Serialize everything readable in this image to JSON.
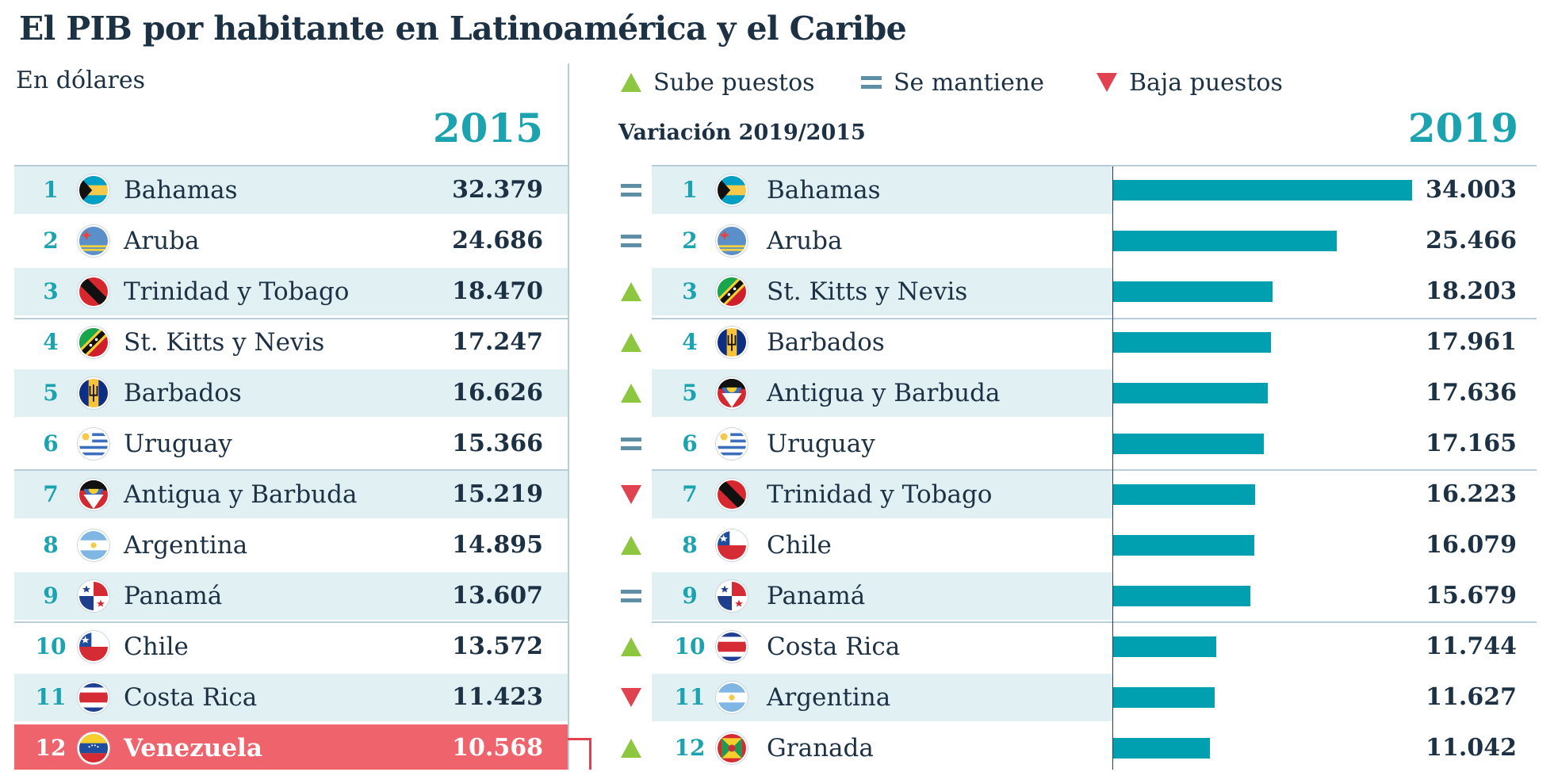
{
  "title": "El PIB por habitante en Latinoamérica y el Caribe",
  "subtitle": "En dólares",
  "colors": {
    "accent": "#1ca3b0",
    "bar": "#00a0b0",
    "up": "#8dc63f",
    "same": "#5f8fa6",
    "down": "#e0434f",
    "highlight": "#ef646c",
    "row_shade": "#e1f0f3",
    "text": "#1c3144"
  },
  "legend": [
    {
      "symbol": "up",
      "label": "Sube puestos"
    },
    {
      "symbol": "same",
      "label": "Se mantiene"
    },
    {
      "symbol": "down",
      "label": "Baja puestos"
    }
  ],
  "left": {
    "year": "2015",
    "rows": [
      {
        "rank": "1",
        "country": "Bahamas",
        "value": "32.379",
        "flag": "bahamas-flag-icon"
      },
      {
        "rank": "2",
        "country": "Aruba",
        "value": "24.686",
        "flag": "aruba-flag-icon"
      },
      {
        "rank": "3",
        "country": "Trinidad y  Tobago",
        "value": "18.470",
        "flag": "trinidad-and-tobago-flag-icon"
      },
      {
        "rank": "4",
        "country": "St. Kitts y Nevis",
        "value": "17.247",
        "flag": "st-kitts-and-nevis-flag-icon"
      },
      {
        "rank": "5",
        "country": "Barbados",
        "value": "16.626",
        "flag": "barbados-flag-icon"
      },
      {
        "rank": "6",
        "country": "Uruguay",
        "value": "15.366",
        "flag": "uruguay-flag-icon"
      },
      {
        "rank": "7",
        "country": "Antigua y Barbuda",
        "value": "15.219",
        "flag": "antigua-and-barbuda-flag-icon"
      },
      {
        "rank": "8",
        "country": "Argentina",
        "value": "14.895",
        "flag": "argentina-flag-icon"
      },
      {
        "rank": "9",
        "country": "Panamá",
        "value": "13.607",
        "flag": "panama-flag-icon"
      },
      {
        "rank": "10",
        "country": "Chile",
        "value": "13.572",
        "flag": "chile-flag-icon"
      },
      {
        "rank": "11",
        "country": "Costa Rica",
        "value": "11.423",
        "flag": "costa-rica-flag-icon"
      },
      {
        "rank": "12",
        "country": "Venezuela",
        "value": "10.568",
        "flag": "venezuela-flag-icon",
        "highlight": true
      }
    ]
  },
  "right": {
    "year": "2019",
    "variation_label": "Variación 2019/2015",
    "rows": [
      {
        "change": "same",
        "rank": "1",
        "country": "Bahamas",
        "value": "34.003",
        "flag": "bahamas-flag-icon"
      },
      {
        "change": "same",
        "rank": "2",
        "country": "Aruba",
        "value": "25.466",
        "flag": "aruba-flag-icon"
      },
      {
        "change": "up",
        "rank": "3",
        "country": "St. Kitts y Nevis",
        "value": "18.203",
        "flag": "st-kitts-and-nevis-flag-icon"
      },
      {
        "change": "up",
        "rank": "4",
        "country": "Barbados",
        "value": "17.961",
        "flag": "barbados-flag-icon"
      },
      {
        "change": "up",
        "rank": "5",
        "country": "Antigua y Barbuda",
        "value": "17.636",
        "flag": "antigua-and-barbuda-flag-icon"
      },
      {
        "change": "same",
        "rank": "6",
        "country": "Uruguay",
        "value": "17.165",
        "flag": "uruguay-flag-icon"
      },
      {
        "change": "down",
        "rank": "7",
        "country": "Trinidad y  Tobago",
        "value": "16.223",
        "flag": "trinidad-and-tobago-flag-icon"
      },
      {
        "change": "up",
        "rank": "8",
        "country": "Chile",
        "value": "16.079",
        "flag": "chile-flag-icon"
      },
      {
        "change": "same",
        "rank": "9",
        "country": "Panamá",
        "value": "15.679",
        "flag": "panama-flag-icon"
      },
      {
        "change": "up",
        "rank": "10",
        "country": "Costa Rica",
        "value": "11.744",
        "flag": "costa-rica-flag-icon"
      },
      {
        "change": "down",
        "rank": "11",
        "country": "Argentina",
        "value": "11.627",
        "flag": "argentina-flag-icon"
      },
      {
        "change": "up",
        "rank": "12",
        "country": "Granada",
        "value": "11.042",
        "flag": "grenada-flag-icon"
      }
    ]
  },
  "chart_data": {
    "type": "bar",
    "orientation": "horizontal",
    "title": "El PIB por habitante en Latinoamérica y el Caribe",
    "unit": "En dólares",
    "categories": [
      "Bahamas",
      "Aruba",
      "St. Kitts y Nevis",
      "Barbados",
      "Antigua y Barbuda",
      "Uruguay",
      "Trinidad y  Tobago",
      "Chile",
      "Panamá",
      "Costa Rica",
      "Argentina",
      "Granada"
    ],
    "series": [
      {
        "name": "2019",
        "values": [
          34003,
          25466,
          18203,
          17961,
          17636,
          17165,
          16223,
          16079,
          15679,
          11744,
          11627,
          11042
        ]
      }
    ],
    "comparison_table": {
      "name": "2015",
      "categories": [
        "Bahamas",
        "Aruba",
        "Trinidad y  Tobago",
        "St. Kitts y Nevis",
        "Barbados",
        "Uruguay",
        "Antigua y Barbuda",
        "Argentina",
        "Panamá",
        "Chile",
        "Costa Rica",
        "Venezuela"
      ],
      "values": [
        32379,
        24686,
        18470,
        17247,
        16626,
        15366,
        15219,
        14895,
        13607,
        13572,
        11423,
        10568
      ]
    },
    "rank_change_2019_vs_2015": [
      "same",
      "same",
      "up",
      "up",
      "up",
      "same",
      "down",
      "up",
      "same",
      "up",
      "down",
      "up"
    ],
    "xlim": [
      0,
      34003
    ],
    "xlabel": "",
    "ylabel": ""
  }
}
